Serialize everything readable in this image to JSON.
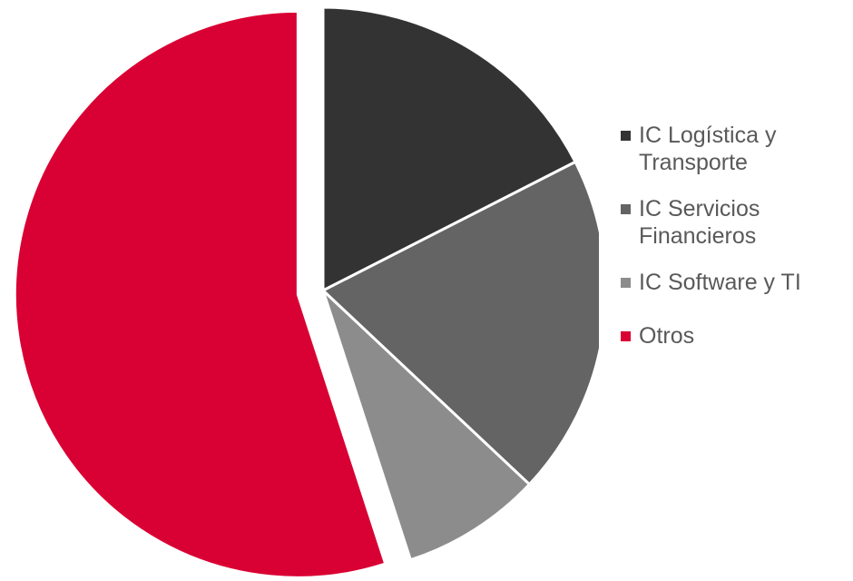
{
  "chart_data": {
    "type": "pie",
    "title": "",
    "start_angle_deg": 0,
    "direction": "clockwise",
    "exploded": [
      "Otros"
    ],
    "slices": [
      {
        "label": "IC Logística y Transporte",
        "value": 17.5,
        "color": "#333333"
      },
      {
        "label": "IC Servicios Financieros",
        "value": 19.5,
        "color": "#646464"
      },
      {
        "label": "IC Software y TI",
        "value": 8.0,
        "color": "#8c8c8c"
      },
      {
        "label": "Otros",
        "value": 55.0,
        "color": "#d90033"
      }
    ],
    "legend": {
      "position": "right",
      "items": [
        {
          "label": "IC Logística y\nTransporte",
          "color": "#333333"
        },
        {
          "label": "IC Servicios\nFinancieros",
          "color": "#646464"
        },
        {
          "label": "IC Software y TI",
          "color": "#8c8c8c"
        },
        {
          "label": "Otros",
          "color": "#d90033"
        }
      ]
    }
  }
}
